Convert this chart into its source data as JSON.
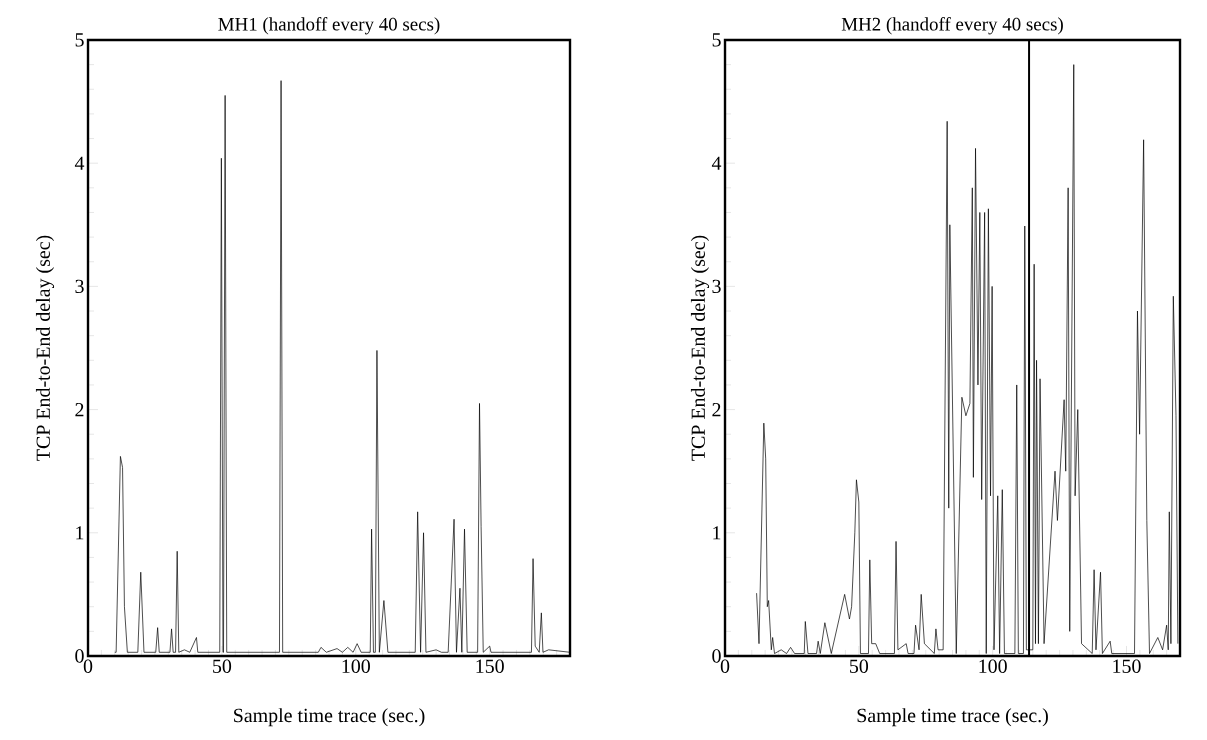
{
  "chart_data": [
    {
      "type": "line",
      "title": "MH1 (handoff every 40 secs)",
      "xlabel": "Sample time trace (sec.)",
      "ylabel": "TCP End-to-End delay (sec)",
      "x": [
        10,
        10.5,
        12.1,
        12.9,
        13.6,
        14.7,
        18.6,
        19.7,
        20.9,
        25.3,
        26,
        26.6,
        30.6,
        31.2,
        31.8,
        32.7,
        33.3,
        33.9,
        36,
        38,
        40.5,
        41,
        49.2,
        49.8,
        50.4,
        50.6,
        51.2,
        51.8,
        71.5,
        72.1,
        72.7,
        86,
        87,
        89,
        93,
        95,
        97,
        99,
        100.5,
        102,
        105.4,
        105.9,
        106.6,
        107.3,
        107.9,
        108.8,
        110.5,
        112,
        122.2,
        123.1,
        124.2,
        125.3,
        126.2,
        130,
        132,
        134.5,
        136.7,
        137.6,
        138.9,
        139.6,
        140.6,
        141.6,
        145.5,
        146.2,
        146.8,
        147.6,
        150,
        150.5,
        165.6,
        166.2,
        167,
        168.5,
        169.3,
        169.9,
        172,
        180
      ],
      "series": [
        {
          "color": "#000000",
          "values": [
            0.03,
            0.03,
            1.62,
            1.53,
            0.4,
            0.03,
            0.03,
            0.68,
            0.03,
            0.03,
            0.23,
            0.03,
            0.03,
            0.22,
            0.03,
            0.03,
            0.85,
            0.03,
            0.05,
            0.03,
            0.15,
            0.03,
            0.03,
            4.04,
            0.03,
            0.03,
            4.55,
            0.03,
            0.03,
            4.67,
            0.03,
            0.03,
            0.07,
            0.03,
            0.06,
            0.03,
            0.07,
            0.03,
            0.1,
            0.03,
            0.03,
            1.03,
            0.03,
            0.03,
            2.48,
            0.03,
            0.45,
            0.03,
            0.03,
            1.17,
            0.03,
            1.0,
            0.03,
            0.05,
            0.03,
            0.03,
            1.11,
            0.03,
            0.55,
            0.03,
            1.03,
            0.03,
            0.03,
            2.05,
            1.05,
            0.03,
            0.08,
            0.03,
            0.03,
            0.79,
            0.08,
            0.03,
            0.35,
            0.03,
            0.05,
            0.03
          ]
        }
      ],
      "xlim": [
        0,
        180
      ],
      "ylim": [
        0,
        5
      ],
      "xticks": [
        0,
        {
          "value": 5,
          "label": null
        },
        {
          "value": 10,
          "label": null
        },
        {
          "value": 15,
          "label": null
        },
        {
          "value": 20,
          "label": null
        },
        {
          "value": 25,
          "label": null
        },
        {
          "value": 30,
          "label": null
        },
        {
          "value": 35,
          "label": null
        },
        {
          "value": 40,
          "label": null
        },
        {
          "value": 45,
          "label": null
        },
        50,
        {
          "value": 55,
          "label": null
        },
        {
          "value": 60,
          "label": null
        },
        {
          "value": 65,
          "label": null
        },
        {
          "value": 70,
          "label": null
        },
        {
          "value": 75,
          "label": null
        },
        {
          "value": 80,
          "label": null
        },
        {
          "value": 85,
          "label": null
        },
        {
          "value": 90,
          "label": null
        },
        {
          "value": 95,
          "label": null
        },
        100,
        {
          "value": 105,
          "label": null
        },
        {
          "value": 110,
          "label": null
        },
        {
          "value": 115,
          "label": null
        },
        {
          "value": 120,
          "label": null
        },
        {
          "value": 125,
          "label": null
        },
        {
          "value": 130,
          "label": null
        },
        {
          "value": 135,
          "label": null
        },
        {
          "value": 140,
          "label": null
        },
        {
          "value": 145,
          "label": null
        },
        150,
        {
          "value": 155,
          "label": null
        },
        {
          "value": 160,
          "label": null
        },
        {
          "value": 165,
          "label": null
        },
        {
          "value": 170,
          "label": null
        },
        {
          "value": 175,
          "label": null
        }
      ],
      "yticks": [
        0,
        {
          "value": 0.2,
          "label": null
        },
        {
          "value": 0.4,
          "label": null
        },
        {
          "value": 0.6,
          "label": null
        },
        {
          "value": 0.8,
          "label": null
        },
        1,
        {
          "value": 1.2,
          "label": null
        },
        {
          "value": 1.4,
          "label": null
        },
        {
          "value": 1.6,
          "label": null
        },
        {
          "value": 1.8,
          "label": null
        },
        2,
        {
          "value": 2.2,
          "label": null
        },
        {
          "value": 2.4,
          "label": null
        },
        {
          "value": 2.6,
          "label": null
        },
        {
          "value": 2.8,
          "label": null
        },
        3,
        {
          "value": 3.2,
          "label": null
        },
        {
          "value": 3.4,
          "label": null
        },
        {
          "value": 3.6,
          "label": null
        },
        {
          "value": 3.8,
          "label": null
        },
        4,
        {
          "value": 4.2,
          "label": null
        },
        {
          "value": 4.4,
          "label": null
        },
        {
          "value": 4.6,
          "label": null
        },
        {
          "value": 4.8,
          "label": null
        },
        5
      ]
    },
    {
      "type": "line",
      "title": "MH2 (handoff every 40 secs)",
      "xlabel": "Sample time trace (sec.)",
      "ylabel": "TCP End-to-End delay (sec)",
      "x": [
        11.8,
        12.7,
        14.5,
        15.2,
        15.8,
        16.3,
        17.3,
        17.8,
        18.5,
        21,
        23,
        24.5,
        26,
        29.6,
        30,
        31,
        34.2,
        34.8,
        35.6,
        37.3,
        39.7,
        44.7,
        46.5,
        47.3,
        48.5,
        49.1,
        50,
        50.6,
        53.6,
        54.1,
        54.8,
        56.3,
        57.8,
        63.3,
        63.9,
        64.6,
        67.7,
        68.4,
        70.6,
        71.2,
        72.5,
        73.3,
        74.5,
        78.2,
        78.8,
        79.6,
        81.5,
        83,
        83.6,
        84,
        86.4,
        88.5,
        90,
        91.5,
        92.4,
        92.8,
        93.6,
        94.5,
        95.2,
        95.9,
        97,
        97.6,
        98.4,
        99.2,
        99.8,
        100.5,
        101.9,
        102.6,
        103.6,
        104.4,
        108.3,
        109,
        109.6,
        111.5,
        112,
        112.6,
        115,
        115.5,
        116,
        116.4,
        117.1,
        117.7,
        119.2,
        123.3,
        124.2,
        126.7,
        127.3,
        128.2,
        128.8,
        130.3,
        130.8,
        131.8,
        133.2,
        137.2,
        137.9,
        138.6,
        140.3,
        141,
        143.9,
        144.5,
        153,
        154.1,
        154.9,
        156.4,
        157.6,
        158.6,
        161.7,
        163.5,
        165,
        165.6,
        166,
        166.6,
        167.5,
        168.5,
        169.2
      ],
      "series": [
        {
          "color": "#000000",
          "values": [
            0.51,
            0.1,
            1.89,
            1.6,
            0.4,
            0.45,
            0.05,
            0.15,
            0.02,
            0.05,
            0.02,
            0.07,
            0.02,
            0.02,
            0.28,
            0.02,
            0.02,
            0.12,
            0.02,
            0.27,
            0.02,
            0.5,
            0.3,
            0.4,
            1.0,
            1.43,
            1.25,
            0.02,
            0.02,
            0.78,
            0.1,
            0.1,
            0.02,
            0.02,
            0.93,
            0.05,
            0.1,
            0.02,
            0.02,
            0.25,
            0.05,
            0.5,
            0.1,
            0.02,
            0.22,
            0.05,
            0.05,
            4.34,
            1.2,
            3.5,
            0.02,
            2.1,
            1.95,
            2.05,
            3.8,
            1.45,
            4.12,
            2.2,
            3.6,
            1.27,
            3.6,
            0.02,
            3.63,
            1.3,
            3.0,
            0.05,
            1.3,
            0.02,
            1.35,
            0.02,
            0.02,
            2.2,
            0.02,
            0.02,
            3.49,
            0.05,
            0.05,
            3.18,
            0.1,
            2.4,
            0.1,
            2.25,
            0.1,
            1.5,
            1.1,
            2.08,
            1.5,
            3.8,
            0.2,
            4.8,
            1.3,
            2.0,
            0.1,
            0.02,
            0.7,
            0.05,
            0.68,
            0.02,
            0.12,
            0.02,
            0.02,
            2.8,
            1.8,
            4.19,
            1.1,
            0.02,
            0.15,
            0.05,
            0.25,
            0.05,
            1.17,
            0.1,
            2.92,
            1.95,
            0.1
          ]
        }
      ],
      "xlim": [
        0,
        170
      ],
      "ylim": [
        0,
        5
      ],
      "xticks": [
        0,
        {
          "value": 5,
          "label": null
        },
        {
          "value": 10,
          "label": null
        },
        {
          "value": 15,
          "label": null
        },
        {
          "value": 20,
          "label": null
        },
        {
          "value": 25,
          "label": null
        },
        {
          "value": 30,
          "label": null
        },
        {
          "value": 35,
          "label": null
        },
        {
          "value": 40,
          "label": null
        },
        {
          "value": 45,
          "label": null
        },
        50,
        {
          "value": 55,
          "label": null
        },
        {
          "value": 60,
          "label": null
        },
        {
          "value": 65,
          "label": null
        },
        {
          "value": 70,
          "label": null
        },
        {
          "value": 75,
          "label": null
        },
        {
          "value": 80,
          "label": null
        },
        {
          "value": 85,
          "label": null
        },
        {
          "value": 90,
          "label": null
        },
        {
          "value": 95,
          "label": null
        },
        100,
        {
          "value": 105,
          "label": null
        },
        {
          "value": 110,
          "label": null
        },
        {
          "value": 115,
          "label": null
        },
        {
          "value": 120,
          "label": null
        },
        {
          "value": 125,
          "label": null
        },
        {
          "value": 130,
          "label": null
        },
        {
          "value": 135,
          "label": null
        },
        {
          "value": 140,
          "label": null
        },
        {
          "value": 145,
          "label": null
        },
        150,
        {
          "value": 155,
          "label": null
        },
        {
          "value": 160,
          "label": null
        },
        {
          "value": 165,
          "label": null
        }
      ],
      "yticks": [
        0,
        {
          "value": 0.2,
          "label": null
        },
        {
          "value": 0.4,
          "label": null
        },
        {
          "value": 0.6,
          "label": null
        },
        {
          "value": 0.8,
          "label": null
        },
        1,
        {
          "value": 1.2,
          "label": null
        },
        {
          "value": 1.4,
          "label": null
        },
        {
          "value": 1.6,
          "label": null
        },
        {
          "value": 1.8,
          "label": null
        },
        2,
        {
          "value": 2.2,
          "label": null
        },
        {
          "value": 2.4,
          "label": null
        },
        {
          "value": 2.6,
          "label": null
        },
        {
          "value": 2.8,
          "label": null
        },
        3,
        {
          "value": 3.2,
          "label": null
        },
        {
          "value": 3.4,
          "label": null
        },
        {
          "value": 3.6,
          "label": null
        },
        {
          "value": 3.8,
          "label": null
        },
        4,
        {
          "value": 4.2,
          "label": null
        },
        {
          "value": 4.4,
          "label": null
        },
        {
          "value": 4.6,
          "label": null
        },
        {
          "value": 4.8,
          "label": null
        },
        5
      ],
      "ref_lines": [
        {
          "axis": "x",
          "value": 113.6
        }
      ]
    }
  ]
}
